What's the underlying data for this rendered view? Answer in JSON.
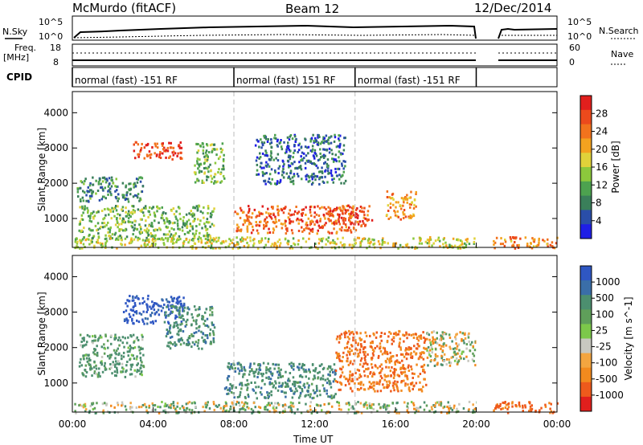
{
  "header": {
    "site": "McMurdo (fitACF)",
    "beam": "Beam 12",
    "date": "12/Dec/2014"
  },
  "strip_labels": {
    "nsky": "N.Sky",
    "nsky_ticks": [
      "10^5",
      "10^0"
    ],
    "nsearch": "N.Search",
    "nsearch_ticks": [
      "10^5",
      "10^0"
    ],
    "freq": "Freq.",
    "freq_unit": "[MHz]",
    "freq_ticks": [
      "18",
      "8"
    ],
    "nave": "Nave",
    "nave_ticks": [
      "60",
      "0"
    ],
    "cpid": "CPID"
  },
  "cpid_segments": [
    {
      "label": "normal (fast) -151 RF",
      "start_h": 0,
      "end_h": 8
    },
    {
      "label": "normal (fast) 151 RF",
      "start_h": 8,
      "end_h": 14
    },
    {
      "label": "normal (fast) -151 RF",
      "start_h": 14,
      "end_h": 20
    }
  ],
  "power_colorbar": {
    "label": "Power [dB]",
    "ticks": [
      "4",
      "8",
      "12",
      "16",
      "20",
      "24",
      "28"
    ],
    "colors": [
      "#1f1fe6",
      "#2a4ea8",
      "#3a7f5a",
      "#4da24f",
      "#8cc83c",
      "#e0d23a",
      "#f3a21f",
      "#f2731d",
      "#ec4a1c",
      "#e11f1d"
    ]
  },
  "velocity_colorbar": {
    "label": "Velocity [m s^-1]",
    "ticks": [
      "1000",
      "500",
      "100",
      "25",
      "-25",
      "-100",
      "-500",
      "-1000"
    ],
    "colors": [
      "#2f57c3",
      "#3a6ea8",
      "#4c8f6f",
      "#5f9f5a",
      "#7cc84a",
      "#c8c8c0",
      "#f3a540",
      "#f28a1e",
      "#ee5a1c",
      "#e11f1d"
    ]
  },
  "chart_data": [
    {
      "type": "heatmap",
      "name_panel": "power",
      "ylabel": "Slant Range [km]",
      "yticks": [
        "1000",
        "2000",
        "3000",
        "4000"
      ],
      "ylim": [
        180,
        4600
      ],
      "xlim": [
        0,
        24
      ],
      "data_gap_h": [
        20,
        20.8
      ],
      "regions": [
        {
          "t": [
            3.0,
            5.5
          ],
          "r": [
            2700,
            3200
          ],
          "value": 28
        },
        {
          "t": [
            6.0,
            7.5
          ],
          "r": [
            2000,
            3200
          ],
          "value": 14
        },
        {
          "t": [
            0.2,
            3.5
          ],
          "r": [
            1500,
            2200
          ],
          "value": 10
        },
        {
          "t": [
            0.3,
            7.0
          ],
          "r": [
            400,
            1400
          ],
          "value": 14
        },
        {
          "t": [
            8.0,
            14.0
          ],
          "r": [
            600,
            1400
          ],
          "value": 26
        },
        {
          "t": [
            12.8,
            14.8
          ],
          "r": [
            800,
            1400
          ],
          "value": 27
        },
        {
          "t": [
            15.5,
            17.0
          ],
          "r": [
            1000,
            1800
          ],
          "value": 22
        },
        {
          "t": [
            9.0,
            13.5
          ],
          "r": [
            2000,
            3400
          ],
          "value": 8
        },
        {
          "t": [
            0,
            20
          ],
          "r": [
            180,
            500
          ],
          "value": 18
        },
        {
          "t": [
            20.8,
            24
          ],
          "r": [
            180,
            500
          ],
          "value": 24
        }
      ]
    },
    {
      "type": "heatmap",
      "name_panel": "velocity",
      "ylabel": "Slant Range [km]",
      "xlabel": "Time UT",
      "xticks": [
        "00:00",
        "04:00",
        "08:00",
        "12:00",
        "16:00",
        "20:00",
        "00:00"
      ],
      "yticks": [
        "1000",
        "2000",
        "3000",
        "4000"
      ],
      "ylim": [
        180,
        4600
      ],
      "xlim": [
        0,
        24
      ],
      "data_gap_h": [
        20,
        20.8
      ],
      "regions": [
        {
          "t": [
            2.5,
            5.5
          ],
          "r": [
            2700,
            3500
          ],
          "value": 900
        },
        {
          "t": [
            4.5,
            7.0
          ],
          "r": [
            2000,
            3200
          ],
          "value": 300
        },
        {
          "t": [
            0.3,
            3.5
          ],
          "r": [
            1200,
            2400
          ],
          "value": 200
        },
        {
          "t": [
            7.5,
            13.0
          ],
          "r": [
            600,
            1600
          ],
          "value": 300
        },
        {
          "t": [
            13.0,
            17.5
          ],
          "r": [
            800,
            2500
          ],
          "value": -300
        },
        {
          "t": [
            17.5,
            20.0
          ],
          "r": [
            1500,
            2500
          ],
          "value": 0
        },
        {
          "t": [
            0,
            20
          ],
          "r": [
            180,
            500
          ],
          "value": 50
        },
        {
          "t": [
            20.8,
            24
          ],
          "r": [
            180,
            500
          ],
          "value": -400
        }
      ]
    }
  ]
}
